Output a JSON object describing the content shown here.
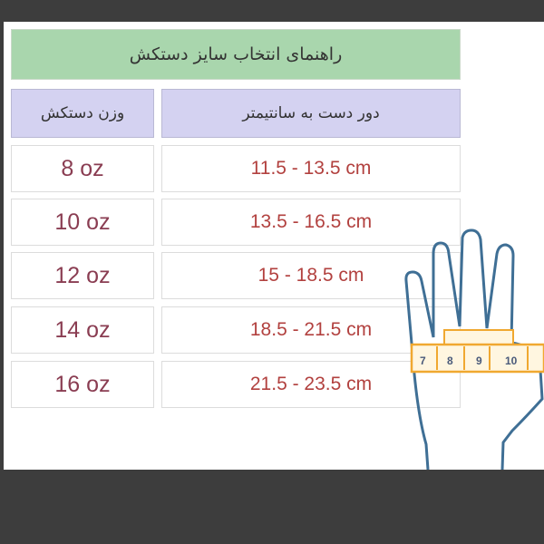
{
  "title": "راهنمای انتخاب سایز دستکش",
  "table": {
    "headers": {
      "weight": "وزن دستکش",
      "hand_size": "دور دست به سانتیمتر"
    },
    "rows": [
      {
        "weight": "8 oz",
        "size": "11.5 - 13.5 cm"
      },
      {
        "weight": "10 oz",
        "size": "13.5 - 16.5 cm"
      },
      {
        "weight": "12 oz",
        "size": "15 - 18.5 cm"
      },
      {
        "weight": "14 oz",
        "size": "18.5 - 21.5 cm"
      },
      {
        "weight": "16 oz",
        "size": "21.5 - 23.5 cm"
      }
    ]
  },
  "illustration": {
    "tape_labels": [
      "7",
      "8",
      "9",
      "10"
    ]
  },
  "colors": {
    "title_bg": "#a9d6ad",
    "header_bg": "#d4d2f1",
    "weight_text": "#8a3d52",
    "size_text": "#b2413f",
    "hand_outline": "#3f6f95",
    "tape": "#f0a830"
  }
}
